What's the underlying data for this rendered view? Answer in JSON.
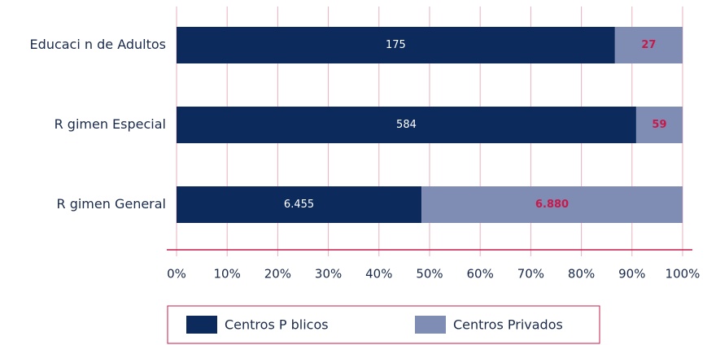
{
  "chart_data": {
    "type": "stacked_bar_100",
    "categories": [
      "Educaci n de Adultos",
      "R gimen Especial",
      "R gimen General"
    ],
    "series": [
      {
        "name": "Centros P blicos",
        "color": "#0c2a5c",
        "values": [
          175,
          584,
          6455
        ],
        "value_labels": [
          "175",
          "584",
          "6.455"
        ]
      },
      {
        "name": "Centros Privados",
        "color": "#7f8cb3",
        "values": [
          27,
          59,
          6880
        ],
        "value_labels": [
          "27",
          "59",
          "6.880"
        ]
      }
    ],
    "xlim": [
      0,
      100
    ],
    "xticks": [
      {
        "value": 0,
        "label": "0%"
      },
      {
        "value": 10,
        "label": "10%"
      },
      {
        "value": 20,
        "label": "20%"
      },
      {
        "value": 30,
        "label": "30%"
      },
      {
        "value": 40,
        "label": "40%"
      },
      {
        "value": 50,
        "label": "50%"
      },
      {
        "value": 60,
        "label": "60%"
      },
      {
        "value": 70,
        "label": "70%"
      },
      {
        "value": 80,
        "label": "80%"
      },
      {
        "value": 90,
        "label": "90%"
      },
      {
        "value": 100,
        "label": "100%"
      }
    ],
    "grid": true,
    "legend": "bottom"
  }
}
